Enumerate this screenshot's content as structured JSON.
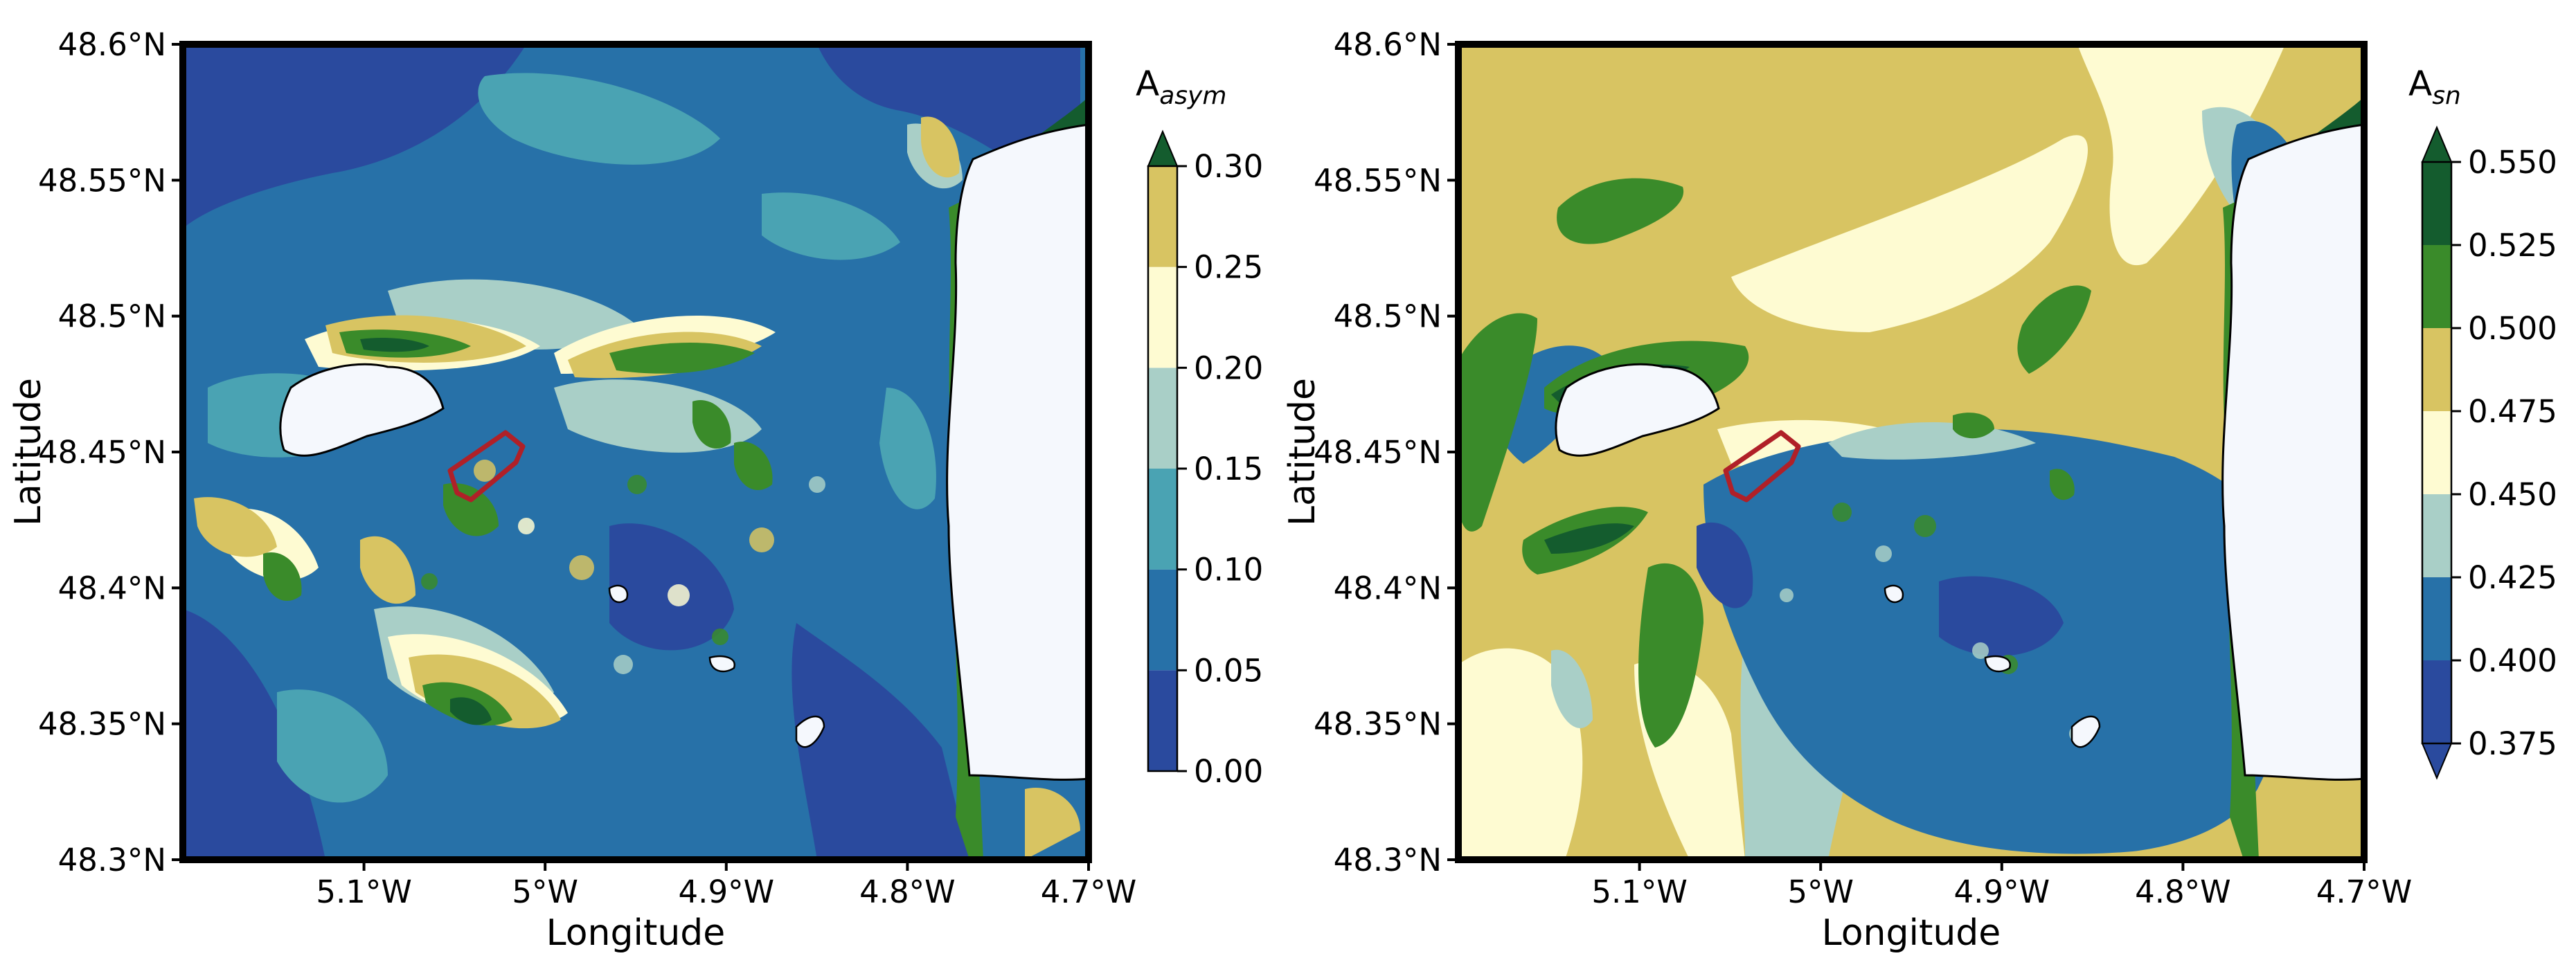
{
  "chart_data": [
    {
      "type": "heatmap",
      "xlabel": "Longitude",
      "ylabel": "Latitude",
      "xlim": [
        -5.2,
        -4.7
      ],
      "ylim": [
        48.3,
        48.6
      ],
      "x_ticks": [
        -5.1,
        -5.0,
        -4.9,
        -4.8,
        -4.7
      ],
      "x_tick_labels": [
        "5.1°W",
        "5°W",
        "4.9°W",
        "4.8°W",
        "4.7°W"
      ],
      "y_ticks": [
        48.3,
        48.35,
        48.4,
        48.45,
        48.5,
        48.55,
        48.6
      ],
      "y_tick_labels": [
        "48.3°N",
        "48.35°N",
        "48.4°N",
        "48.45°N",
        "48.5°N",
        "48.55°N",
        "48.6°N"
      ],
      "colorbar": {
        "label_base": "A",
        "label_sub": "asym",
        "levels": [
          0.0,
          0.05,
          0.1,
          0.15,
          0.2,
          0.25,
          0.3
        ],
        "tick_labels": [
          "0.00",
          "0.05",
          "0.10",
          "0.15",
          "0.20",
          "0.25",
          "0.30"
        ],
        "colors": [
          "#2a4a9e",
          "#2771a8",
          "#4aa3b3",
          "#a9cfc7",
          "#fefbd2",
          "#d8c462",
          "#8ca616",
          "#3a8b2a",
          "#145c2e"
        ],
        "extend": "max"
      },
      "grid": false,
      "land_color": "#f5f8fd"
    },
    {
      "type": "heatmap",
      "xlabel": "Longitude",
      "ylabel": "Latitude",
      "xlim": [
        -5.2,
        -4.7
      ],
      "ylim": [
        48.3,
        48.6
      ],
      "x_ticks": [
        -5.1,
        -5.0,
        -4.9,
        -4.8,
        -4.7
      ],
      "x_tick_labels": [
        "5.1°W",
        "5°W",
        "4.9°W",
        "4.8°W",
        "4.7°W"
      ],
      "y_ticks": [
        48.3,
        48.35,
        48.4,
        48.45,
        48.5,
        48.55,
        48.6
      ],
      "y_tick_labels": [
        "48.3°N",
        "48.35°N",
        "48.4°N",
        "48.45°N",
        "48.5°N",
        "48.55°N",
        "48.6°N"
      ],
      "colorbar": {
        "label_base": "A",
        "label_sub": "sn",
        "levels": [
          0.375,
          0.4,
          0.425,
          0.45,
          0.475,
          0.5,
          0.525,
          0.55
        ],
        "tick_labels": [
          "0.375",
          "0.400",
          "0.425",
          "0.450",
          "0.475",
          "0.500",
          "0.525",
          "0.550"
        ],
        "colors": [
          "#2a4a9e",
          "#2a4a9e",
          "#2771a8",
          "#a9cfc7",
          "#fefbd2",
          "#d8c462",
          "#3a8b2a",
          "#145c2e",
          "#145c2e"
        ],
        "extend": "both"
      },
      "grid": false,
      "land_color": "#f5f8fd"
    }
  ]
}
